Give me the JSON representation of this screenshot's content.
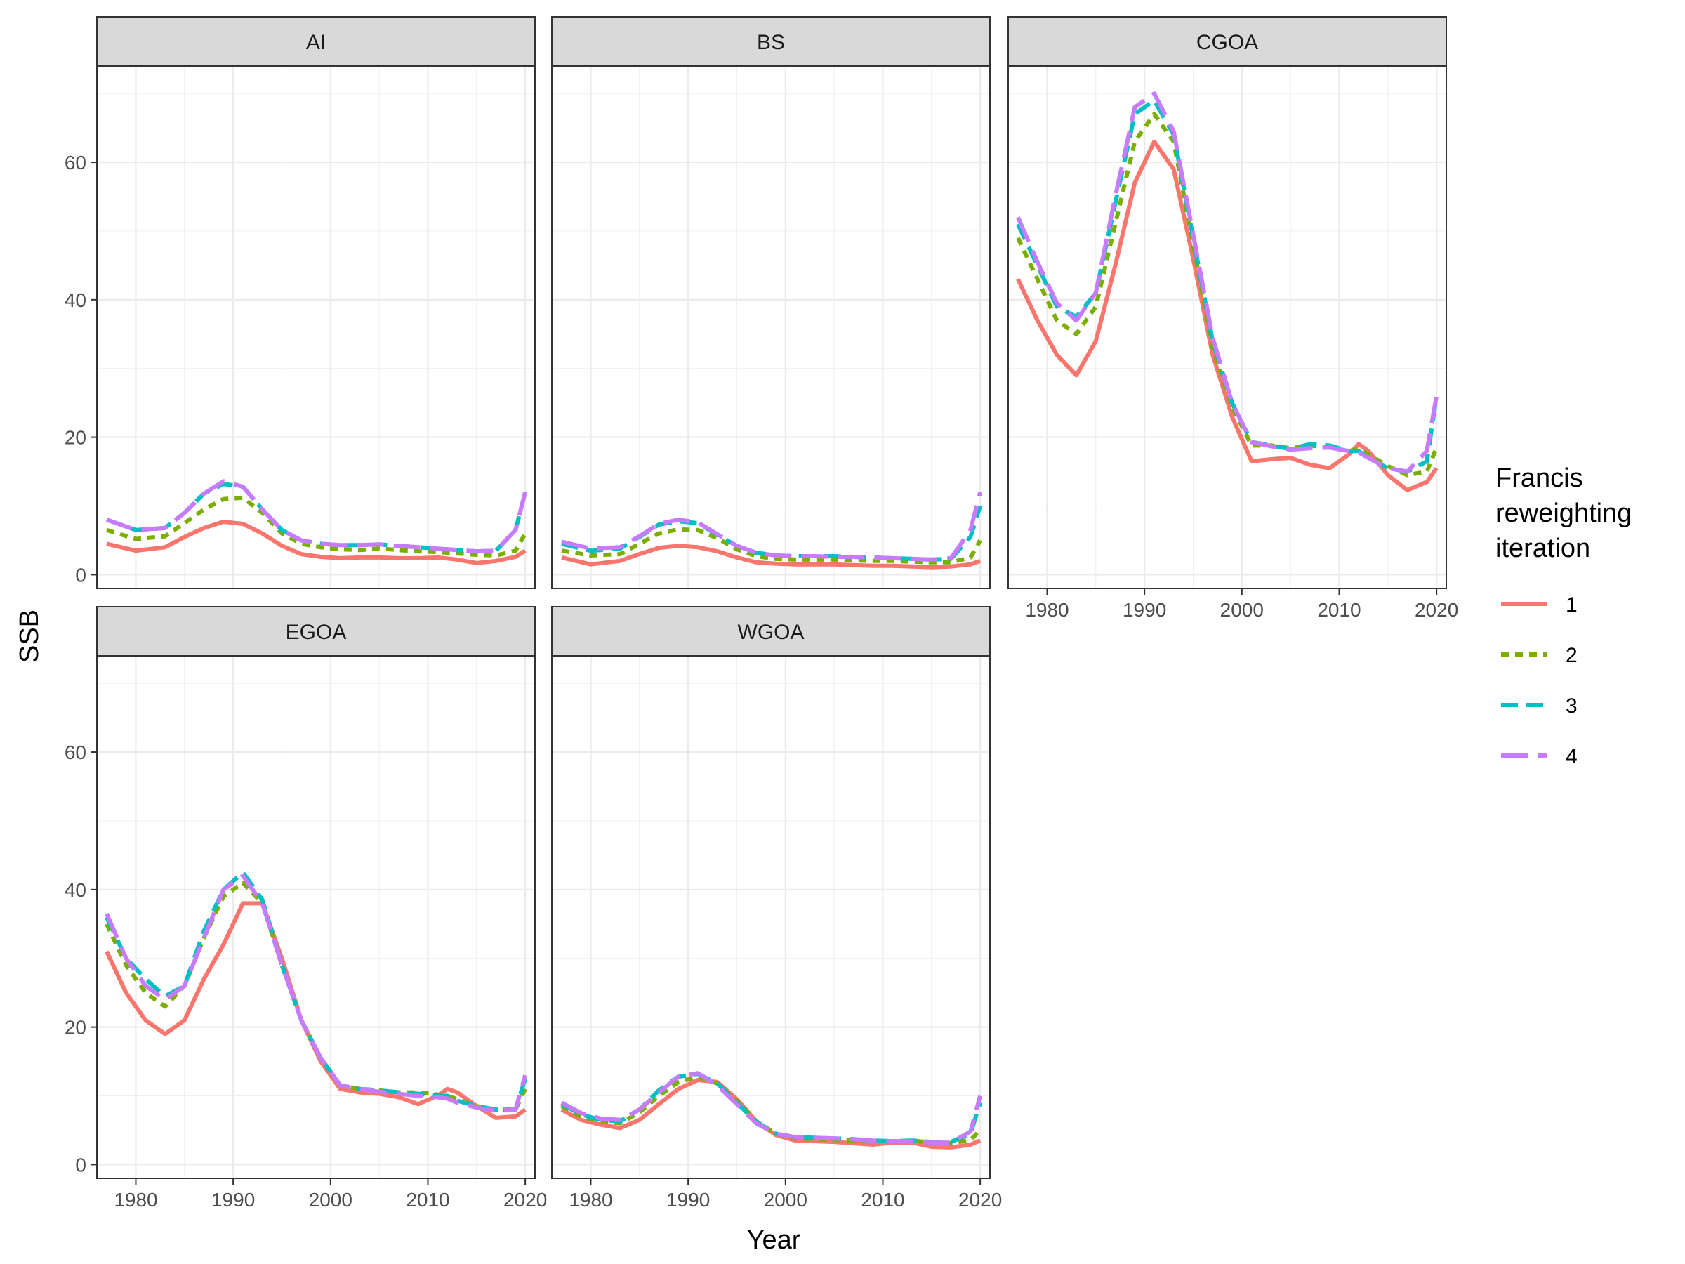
{
  "chart_data": {
    "type": "line",
    "xlabel": "Year",
    "ylabel": "SSB",
    "xlim": [
      1976,
      2021
    ],
    "ylim": [
      -2,
      74
    ],
    "x_ticks": [
      1980,
      1990,
      2000,
      2010,
      2020
    ],
    "y_ticks": [
      0,
      20,
      40,
      60
    ],
    "grid": true,
    "legend": {
      "title": [
        "Francis",
        "reweighting",
        "iteration"
      ],
      "placement": "right",
      "entries": [
        "1",
        "2",
        "3",
        "4"
      ]
    },
    "series_styles": [
      {
        "name": "1",
        "color": "#F8766D",
        "dash": "solid"
      },
      {
        "name": "2",
        "color": "#7CAE00",
        "dash": "dotted"
      },
      {
        "name": "3",
        "color": "#00BFC4",
        "dash": "dashed"
      },
      {
        "name": "4",
        "color": "#C77CFF",
        "dash": "longdash"
      }
    ],
    "panels": [
      {
        "name": "AI",
        "x": [
          1977,
          1980,
          1983,
          1985,
          1987,
          1989,
          1991,
          1993,
          1995,
          1997,
          1999,
          2001,
          2003,
          2005,
          2007,
          2009,
          2011,
          2013,
          2015,
          2017,
          2019,
          2020
        ],
        "series": [
          {
            "name": "1",
            "values": [
              4.5,
              3.5,
              4,
              5.5,
              6.8,
              7.7,
              7.4,
              6,
              4.2,
              3,
              2.6,
              2.4,
              2.5,
              2.5,
              2.4,
              2.4,
              2.5,
              2.2,
              1.7,
              2,
              2.6,
              3.5
            ]
          },
          {
            "name": "2",
            "values": [
              6.5,
              5.2,
              5.6,
              7.5,
              9.5,
              11,
              11.2,
              9,
              6,
              4.5,
              4,
              3.7,
              3.6,
              3.8,
              3.6,
              3.4,
              3.3,
              3.1,
              2.9,
              2.8,
              3.5,
              6
            ]
          },
          {
            "name": "3",
            "values": [
              8,
              6.5,
              6.8,
              9,
              11.8,
              13.2,
              12.8,
              9.5,
              6.5,
              5,
              4.5,
              4.3,
              4.3,
              4.4,
              4.2,
              4,
              3.8,
              3.6,
              3.4,
              3.5,
              6.5,
              12
            ]
          },
          {
            "name": "4",
            "values": [
              8,
              6.5,
              6.8,
              9,
              11.8,
              13.6,
              12.8,
              9.5,
              6.5,
              5,
              4.5,
              4.3,
              4.3,
              4.4,
              4.2,
              4,
              3.8,
              3.6,
              3.4,
              3.5,
              6.5,
              12
            ]
          }
        ]
      },
      {
        "name": "BS",
        "x": [
          1977,
          1980,
          1983,
          1985,
          1987,
          1989,
          1991,
          1993,
          1995,
          1997,
          1999,
          2001,
          2003,
          2005,
          2007,
          2009,
          2011,
          2013,
          2015,
          2017,
          2019,
          2020
        ],
        "series": [
          {
            "name": "1",
            "values": [
              2.5,
              1.5,
              2,
              3,
              3.9,
              4.2,
              4,
              3.4,
              2.5,
              1.8,
              1.6,
              1.5,
              1.5,
              1.5,
              1.4,
              1.3,
              1.3,
              1.2,
              1.1,
              1.2,
              1.5,
              2
            ]
          },
          {
            "name": "2",
            "values": [
              3.5,
              2.8,
              3,
              4.5,
              6,
              6.6,
              6.5,
              5.3,
              3.7,
              2.7,
              2.3,
              2.2,
              2.2,
              2.2,
              2.1,
              2,
              2,
              1.9,
              1.8,
              1.8,
              2.5,
              5
            ]
          },
          {
            "name": "3",
            "values": [
              4.5,
              3.5,
              3.8,
              5.5,
              7.3,
              7.8,
              7.5,
              5.8,
              4.2,
              3.2,
              2.8,
              2.7,
              2.7,
              2.7,
              2.6,
              2.5,
              2.4,
              2.3,
              2.2,
              2.3,
              5.5,
              10
            ]
          },
          {
            "name": "4",
            "values": [
              4.8,
              3.8,
              4,
              5.6,
              7.4,
              8,
              7.6,
              5.9,
              4.2,
              3.2,
              2.8,
              2.7,
              2.7,
              2.6,
              2.6,
              2.5,
              2.4,
              2.3,
              2.2,
              2.4,
              6.5,
              12
            ]
          }
        ]
      },
      {
        "name": "CGOA",
        "x": [
          1977,
          1979,
          1981,
          1983,
          1985,
          1987,
          1989,
          1991,
          1993,
          1995,
          1997,
          1999,
          2001,
          2003,
          2005,
          2007,
          2009,
          2011,
          2012,
          2013,
          2015,
          2017,
          2019,
          2020
        ],
        "series": [
          {
            "name": "1",
            "values": [
              43,
              37,
              32,
              29,
              34,
              45,
              57,
              63,
              59,
              46,
              32,
              23,
              16.5,
              16.8,
              17,
              16,
              15.5,
              17.5,
              19,
              18,
              14.5,
              12.3,
              13.5,
              15.5
            ]
          },
          {
            "name": "2",
            "values": [
              49,
              43,
              37,
              35,
              39,
              51,
              63,
              67,
              63,
              48,
              33,
              24.5,
              18.8,
              18.8,
              18.4,
              18.8,
              18.5,
              18,
              18.3,
              17.5,
              15.8,
              14.5,
              15,
              18.5
            ]
          },
          {
            "name": "3",
            "values": [
              51,
              45,
              39,
              37.5,
              41,
              54,
              67,
              69,
              64,
              49,
              34,
              25,
              19.3,
              18.8,
              18.3,
              19,
              18.8,
              18,
              18,
              17,
              15.5,
              15,
              16.5,
              26
            ]
          },
          {
            "name": "4",
            "values": [
              52,
              45.5,
              39.5,
              37,
              41,
              55,
              68,
              70,
              64.5,
              49.5,
              34.5,
              25,
              19.3,
              18.7,
              18.2,
              18.4,
              18.5,
              18,
              17.8,
              17,
              15.5,
              15,
              18,
              26
            ]
          }
        ]
      },
      {
        "name": "EGOA",
        "x": [
          1977,
          1979,
          1981,
          1983,
          1985,
          1987,
          1989,
          1991,
          1993,
          1995,
          1997,
          1999,
          2001,
          2003,
          2005,
          2007,
          2009,
          2011,
          2012,
          2013,
          2015,
          2017,
          2019,
          2020
        ],
        "series": [
          {
            "name": "1",
            "values": [
              31,
              25,
              21,
              19,
              21,
              27,
              32,
              38,
              38,
              30,
              21,
              15,
              11,
              10.5,
              10.3,
              9.8,
              8.8,
              10,
              11,
              10.5,
              8.5,
              6.8,
              7,
              8
            ]
          },
          {
            "name": "2",
            "values": [
              35,
              29,
              25,
              23,
              26,
              33,
              39,
              41,
              38,
              29,
              21,
              15.5,
              11.5,
              11,
              10.8,
              10.5,
              10.5,
              10.2,
              10,
              9.5,
              8.5,
              8,
              8,
              11
            ]
          },
          {
            "name": "3",
            "values": [
              36,
              30,
              27,
              24.5,
              26,
              34,
              40,
              42.5,
              38.5,
              29,
              21,
              15.5,
              11.5,
              11,
              10.8,
              10.5,
              10.3,
              10,
              10,
              9.3,
              8.5,
              8,
              8,
              12.5
            ]
          },
          {
            "name": "4",
            "values": [
              36.5,
              30,
              26,
              24,
              26,
              33,
              40,
              42,
              38,
              29,
              21,
              15.5,
              11.5,
              11,
              10.6,
              10.3,
              10,
              9.8,
              9.6,
              9,
              8.3,
              7.8,
              8,
              13
            ]
          }
        ]
      },
      {
        "name": "WGOA",
        "x": [
          1977,
          1979,
          1981,
          1983,
          1985,
          1987,
          1989,
          1991,
          1993,
          1995,
          1997,
          1999,
          2001,
          2003,
          2005,
          2007,
          2009,
          2011,
          2013,
          2015,
          2017,
          2019,
          2020
        ],
        "series": [
          {
            "name": "1",
            "values": [
              8,
              6.5,
              5.8,
              5.3,
              6.5,
              8.8,
              11,
              12.3,
              12,
              9.5,
              6.3,
              4.3,
              3.5,
              3.4,
              3.3,
              3.1,
              2.9,
              3.2,
              3.2,
              2.6,
              2.5,
              2.9,
              3.5
            ]
          },
          {
            "name": "2",
            "values": [
              8.5,
              7,
              6.3,
              6,
              7.6,
              10,
              12,
              12.8,
              11.8,
              9.3,
              6.3,
              4.5,
              3.8,
              3.7,
              3.6,
              3.5,
              3.4,
              3.4,
              3.5,
              3.2,
              3.1,
              3.6,
              5
            ]
          },
          {
            "name": "3",
            "values": [
              8.8,
              7.3,
              6.5,
              6.3,
              8,
              10.8,
              12.8,
              13.2,
              11.8,
              9,
              6.2,
              4.5,
              4,
              3.9,
              3.8,
              3.7,
              3.5,
              3.4,
              3.5,
              3.3,
              3.3,
              4.5,
              9
            ]
          },
          {
            "name": "4",
            "values": [
              9,
              7.5,
              6.7,
              6.5,
              8,
              10.5,
              12.8,
              13.3,
              11.5,
              8.8,
              6,
              4.5,
              4,
              3.9,
              3.8,
              3.7,
              3.5,
              3.4,
              3.4,
              3.2,
              3.2,
              4.8,
              10
            ]
          }
        ]
      }
    ]
  }
}
